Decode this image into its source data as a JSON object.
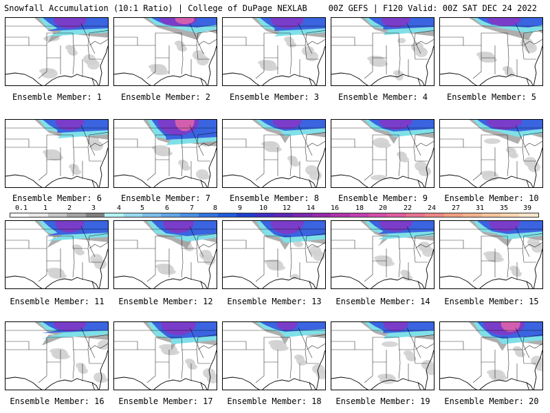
{
  "header": {
    "left_title": "Snowfall Accumulation (10:1 Ratio) | College of DuPage NEXLAB",
    "right_title": "00Z GEFS | F120 Valid: 00Z SAT DEC 24 2022"
  },
  "colorbar": {
    "labels": [
      "0.1",
      "1",
      "2",
      "3",
      "4",
      "5",
      "6",
      "7",
      "8",
      "9",
      "10",
      "12",
      "14",
      "16",
      "18",
      "20",
      "22",
      "24",
      "27",
      "31",
      "35",
      "39"
    ],
    "colors": [
      "#ffffff",
      "#e8e8e8",
      "#c6c6c6",
      "#a4a4a4",
      "#7f7f7f",
      "#b4f3f3",
      "#98d8ee",
      "#7dc0ea",
      "#62a7e6",
      "#4a8fe2",
      "#3273de",
      "#1f5bda",
      "#1f3ecc",
      "#3f2cc0",
      "#5b27b4",
      "#7a27ae",
      "#962aa9",
      "#ad33aa",
      "#c23fb0",
      "#d24ea9",
      "#de5e9e",
      "#e77391",
      "#ec8886",
      "#f19e80",
      "#f4b28b",
      "#f7c49b",
      "#fad6b0",
      "#fde6c9"
    ]
  },
  "panels": [
    {
      "label": "Ensemble Member: 1",
      "snow": {
        "lat": 0.15,
        "intensity": 0.8,
        "east": 0.4
      }
    },
    {
      "label": "Ensemble Member: 2",
      "snow": {
        "lat": 0.1,
        "intensity": 0.9,
        "east": 0.8
      }
    },
    {
      "label": "Ensemble Member: 3",
      "snow": {
        "lat": 0.15,
        "intensity": 0.8,
        "east": 0.5
      }
    },
    {
      "label": "Ensemble Member: 4",
      "snow": {
        "lat": 0.13,
        "intensity": 0.7,
        "east": 0.5
      }
    },
    {
      "label": "Ensemble Member: 5",
      "snow": {
        "lat": 0.1,
        "intensity": 0.8,
        "east": 0.85
      }
    },
    {
      "label": "Ensemble Member: 6",
      "snow": {
        "lat": 0.15,
        "intensity": 0.7,
        "east": 0.5
      }
    },
    {
      "label": "Ensemble Member: 7",
      "snow": {
        "lat": 0.25,
        "intensity": 1.0,
        "east": 0.5
      }
    },
    {
      "label": "Ensemble Member: 8",
      "snow": {
        "lat": 0.12,
        "intensity": 0.7,
        "east": 0.6
      }
    },
    {
      "label": "Ensemble Member: 9",
      "snow": {
        "lat": 0.13,
        "intensity": 0.8,
        "east": 0.6
      }
    },
    {
      "label": "Ensemble Member: 10",
      "snow": {
        "lat": 0.13,
        "intensity": 0.85,
        "east": 0.75
      }
    },
    {
      "label": "Ensemble Member: 11",
      "snow": {
        "lat": 0.17,
        "intensity": 0.7,
        "east": 0.4
      }
    },
    {
      "label": "Ensemble Member: 12",
      "snow": {
        "lat": 0.18,
        "intensity": 0.75,
        "east": 0.7
      }
    },
    {
      "label": "Ensemble Member: 13",
      "snow": {
        "lat": 0.2,
        "intensity": 0.8,
        "east": 0.6
      }
    },
    {
      "label": "Ensemble Member: 14",
      "snow": {
        "lat": 0.15,
        "intensity": 0.8,
        "east": 0.45
      }
    },
    {
      "label": "Ensemble Member: 15",
      "snow": {
        "lat": 0.15,
        "intensity": 0.75,
        "east": 0.65
      }
    },
    {
      "label": "Ensemble Member: 16",
      "snow": {
        "lat": 0.12,
        "intensity": 0.8,
        "east": 0.35
      }
    },
    {
      "label": "Ensemble Member: 17",
      "snow": {
        "lat": 0.2,
        "intensity": 0.85,
        "east": 0.55
      }
    },
    {
      "label": "Ensemble Member: 18",
      "snow": {
        "lat": 0.1,
        "intensity": 0.5,
        "east": 0.6
      }
    },
    {
      "label": "Ensemble Member: 19",
      "snow": {
        "lat": 0.12,
        "intensity": 0.6,
        "east": 0.5
      }
    },
    {
      "label": "Ensemble Member: 20",
      "snow": {
        "lat": 0.2,
        "intensity": 1.0,
        "east": 0.6
      }
    }
  ]
}
